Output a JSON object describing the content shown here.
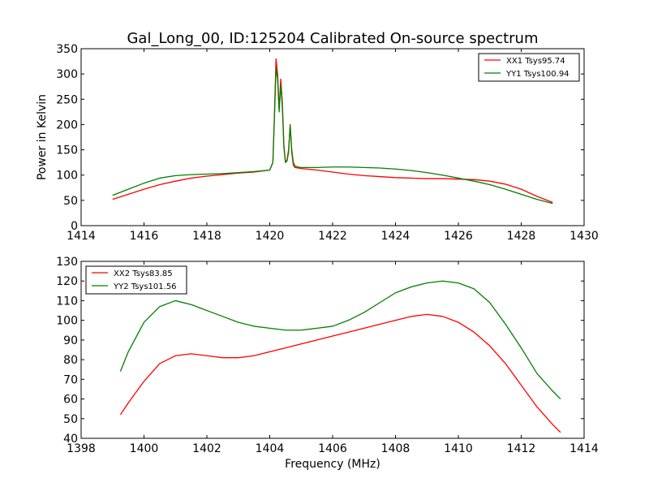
{
  "title": "Gal_Long_00, ID:125204 Calibrated On-source spectrum",
  "colors": {
    "XX": "#ff0000",
    "YY": "#007f00"
  },
  "chart_data": [
    {
      "type": "line",
      "ylabel": "Power in Kelvin",
      "xlabel": "",
      "xlim": [
        1414,
        1430
      ],
      "ylim": [
        0,
        350
      ],
      "xticks": [
        1414,
        1416,
        1418,
        1420,
        1422,
        1424,
        1426,
        1428,
        1430
      ],
      "yticks": [
        0,
        50,
        100,
        150,
        200,
        250,
        300,
        350
      ],
      "legend_position": "top-right",
      "grid": false,
      "series": [
        {
          "name": "XX1 Tsys95.74",
          "color": "#ff0000",
          "x": [
            1415.0,
            1415.5,
            1416.0,
            1416.5,
            1417.0,
            1417.5,
            1418.0,
            1418.5,
            1419.0,
            1419.5,
            1420.0,
            1420.1,
            1420.15,
            1420.2,
            1420.25,
            1420.3,
            1420.35,
            1420.4,
            1420.45,
            1420.5,
            1420.55,
            1420.6,
            1420.65,
            1420.7,
            1420.75,
            1420.8,
            1420.9,
            1421.0,
            1421.5,
            1422.0,
            1422.5,
            1423.0,
            1423.5,
            1424.0,
            1424.5,
            1425.0,
            1425.5,
            1426.0,
            1426.5,
            1427.0,
            1427.5,
            1428.0,
            1428.5,
            1429.0
          ],
          "values": [
            52,
            62,
            72,
            81,
            88,
            94,
            98,
            101,
            104,
            106,
            110,
            125,
            220,
            330,
            300,
            230,
            290,
            245,
            160,
            125,
            130,
            150,
            200,
            145,
            120,
            115,
            114,
            113,
            110,
            106,
            102,
            99,
            97,
            95,
            94,
            93,
            93,
            92,
            91,
            88,
            82,
            72,
            58,
            46
          ]
        },
        {
          "name": "YY1 Tsys100.94",
          "color": "#007f00",
          "x": [
            1415.0,
            1415.5,
            1416.0,
            1416.5,
            1417.0,
            1417.5,
            1418.0,
            1418.5,
            1419.0,
            1419.5,
            1420.0,
            1420.1,
            1420.15,
            1420.2,
            1420.25,
            1420.3,
            1420.35,
            1420.4,
            1420.45,
            1420.5,
            1420.55,
            1420.6,
            1420.65,
            1420.7,
            1420.75,
            1420.8,
            1420.9,
            1421.0,
            1421.5,
            1422.0,
            1422.5,
            1423.0,
            1423.5,
            1424.0,
            1424.5,
            1425.0,
            1425.5,
            1426.0,
            1426.5,
            1427.0,
            1427.5,
            1428.0,
            1428.5,
            1429.0
          ],
          "values": [
            60,
            72,
            84,
            94,
            99,
            101,
            102,
            103,
            105,
            107,
            110,
            125,
            215,
            312,
            290,
            225,
            280,
            235,
            155,
            125,
            128,
            145,
            198,
            150,
            125,
            118,
            116,
            115,
            115,
            116,
            116,
            115,
            114,
            112,
            109,
            105,
            100,
            94,
            88,
            81,
            72,
            62,
            52,
            44
          ]
        }
      ]
    },
    {
      "type": "line",
      "ylabel": "",
      "xlabel": "Frequency (MHz)",
      "xlim": [
        1398,
        1414
      ],
      "ylim": [
        40,
        130
      ],
      "xticks": [
        1398,
        1400,
        1402,
        1404,
        1406,
        1408,
        1410,
        1412,
        1414
      ],
      "yticks": [
        40,
        50,
        60,
        70,
        80,
        90,
        100,
        110,
        120,
        130
      ],
      "legend_position": "top-left",
      "grid": false,
      "series": [
        {
          "name": "XX2 Tsys83.85",
          "color": "#ff0000",
          "x": [
            1399.25,
            1399.5,
            1400.0,
            1400.5,
            1401.0,
            1401.5,
            1402.0,
            1402.5,
            1403.0,
            1403.5,
            1404.0,
            1404.5,
            1405.0,
            1405.5,
            1406.0,
            1406.5,
            1407.0,
            1407.5,
            1408.0,
            1408.5,
            1409.0,
            1409.5,
            1410.0,
            1410.5,
            1411.0,
            1411.5,
            1412.0,
            1412.5,
            1413.0,
            1413.25
          ],
          "values": [
            52,
            58,
            69,
            78,
            82,
            83,
            82,
            81,
            81,
            82,
            84,
            86,
            88,
            90,
            92,
            94,
            96,
            98,
            100,
            102,
            103,
            102,
            99,
            94,
            87,
            78,
            67,
            56,
            47,
            43
          ]
        },
        {
          "name": "YY2 Tsys101.56",
          "color": "#007f00",
          "x": [
            1399.25,
            1399.5,
            1400.0,
            1400.5,
            1401.0,
            1401.5,
            1402.0,
            1402.5,
            1403.0,
            1403.5,
            1404.0,
            1404.5,
            1405.0,
            1405.5,
            1406.0,
            1406.5,
            1407.0,
            1407.5,
            1408.0,
            1408.5,
            1409.0,
            1409.5,
            1410.0,
            1410.5,
            1411.0,
            1411.5,
            1412.0,
            1412.5,
            1413.0,
            1413.25
          ],
          "values": [
            74,
            84,
            99,
            107,
            110,
            108,
            105,
            102,
            99,
            97,
            96,
            95,
            95,
            96,
            97,
            100,
            104,
            109,
            114,
            117,
            119,
            120,
            119,
            116,
            109,
            98,
            86,
            73,
            64,
            60
          ]
        }
      ]
    }
  ]
}
